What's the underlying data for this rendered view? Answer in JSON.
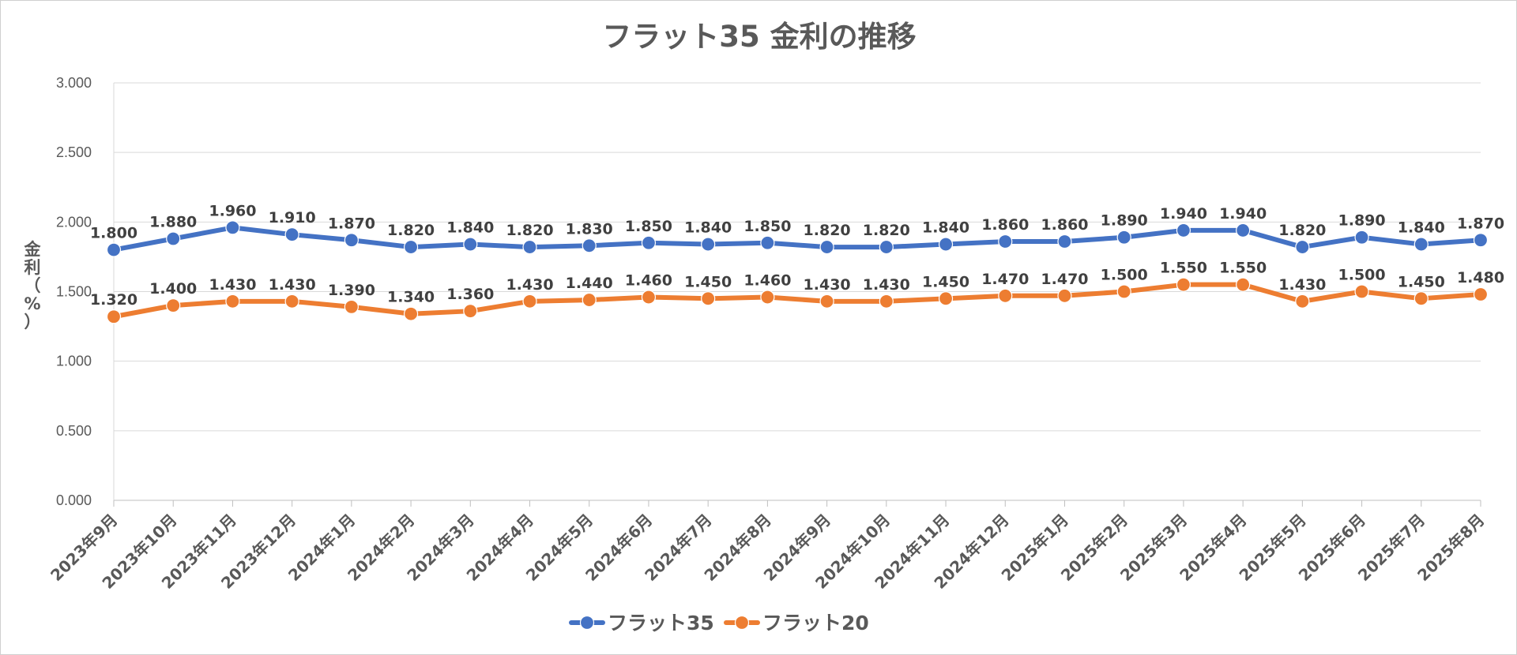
{
  "chart_data": {
    "type": "line",
    "title": "フラット35 金利の推移",
    "ylabel": "金利（%）",
    "xlabel": "",
    "ylim": [
      0,
      3
    ],
    "y_ticks": [
      "0.000",
      "0.500",
      "1.000",
      "1.500",
      "2.000",
      "2.500",
      "3.000"
    ],
    "grid": true,
    "legend_position": "bottom",
    "categories": [
      "2023年9月",
      "2023年10月",
      "2023年11月",
      "2023年12月",
      "2024年1月",
      "2024年2月",
      "2024年3月",
      "2024年4月",
      "2024年5月",
      "2024年6月",
      "2024年7月",
      "2024年8月",
      "2024年9月",
      "2024年10月",
      "2024年11月",
      "2024年12月",
      "2025年1月",
      "2025年2月",
      "2025年3月",
      "2025年4月",
      "2025年5月",
      "2025年6月",
      "2025年7月",
      "2025年8月"
    ],
    "series": [
      {
        "name": "フラット35",
        "color": "#4472C4",
        "values": [
          1.8,
          1.88,
          1.96,
          1.91,
          1.87,
          1.82,
          1.84,
          1.82,
          1.83,
          1.85,
          1.84,
          1.85,
          1.82,
          1.82,
          1.84,
          1.86,
          1.86,
          1.89,
          1.94,
          1.94,
          1.82,
          1.89,
          1.84,
          1.87
        ]
      },
      {
        "name": "フラット20",
        "color": "#ED7D31",
        "values": [
          1.32,
          1.4,
          1.43,
          1.43,
          1.39,
          1.34,
          1.36,
          1.43,
          1.44,
          1.46,
          1.45,
          1.46,
          1.43,
          1.43,
          1.45,
          1.47,
          1.47,
          1.5,
          1.55,
          1.55,
          1.43,
          1.5,
          1.45,
          1.48
        ]
      }
    ]
  }
}
